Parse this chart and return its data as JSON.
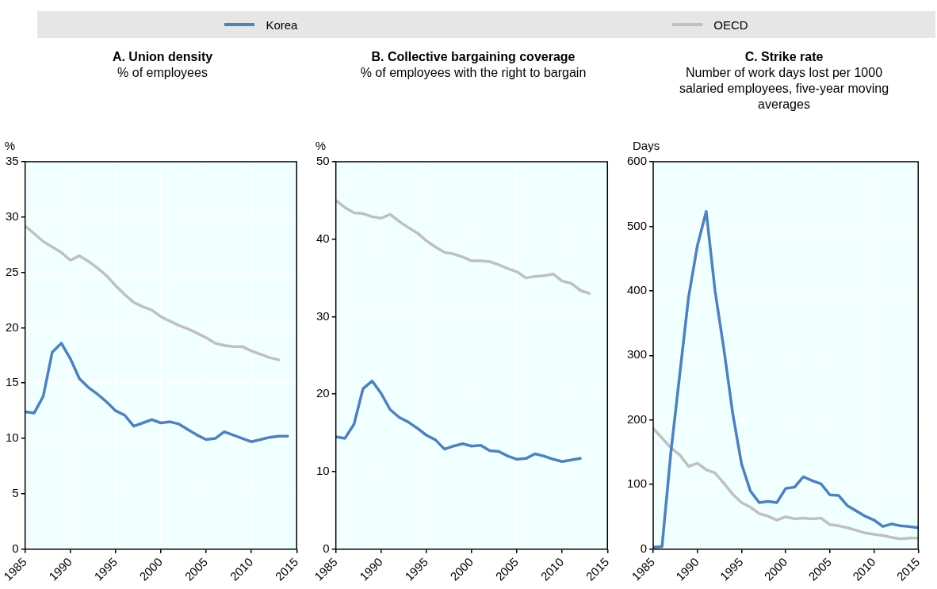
{
  "chart_data": [
    {
      "type": "line",
      "title": "A. Union density",
      "subtitle": "% of employees",
      "ylabel": "%",
      "x": [
        1985,
        1986,
        1987,
        1988,
        1989,
        1990,
        1991,
        1992,
        1993,
        1994,
        1995,
        1996,
        1997,
        1998,
        1999,
        2000,
        2001,
        2002,
        2003,
        2004,
        2005,
        2006,
        2007,
        2008,
        2009,
        2010,
        2011,
        2012,
        2013,
        2014
      ],
      "xlim": [
        1985,
        2015
      ],
      "xticks": [
        1985,
        1990,
        1995,
        2000,
        2005,
        2010,
        2015
      ],
      "ylim": [
        0,
        35
      ],
      "yticks": [
        0,
        5,
        10,
        15,
        20,
        25,
        30,
        35
      ],
      "grid": true,
      "legend": "top",
      "marker": "none",
      "series": [
        {
          "name": "Korea",
          "color": "#4f81bd",
          "values": [
            12.4,
            12.3,
            13.8,
            17.8,
            18.6,
            17.2,
            15.4,
            14.6,
            14.0,
            13.3,
            12.5,
            12.1,
            11.1,
            11.4,
            11.7,
            11.4,
            11.5,
            11.3,
            10.8,
            10.3,
            9.9,
            10.0,
            10.6,
            10.3,
            10.0,
            9.7,
            9.9,
            10.1,
            10.2,
            10.2
          ]
        },
        {
          "name": "OECD",
          "color": "#c0c0c0",
          "values": [
            29.2,
            28.5,
            27.8,
            27.3,
            26.8,
            26.1,
            26.5,
            26.0,
            25.4,
            24.7,
            23.8,
            23.0,
            22.3,
            21.9,
            21.6,
            21.0,
            20.6,
            20.2,
            19.9,
            19.5,
            19.1,
            18.6,
            18.4,
            18.3,
            18.3,
            17.9,
            17.6,
            17.3,
            17.1,
            null
          ]
        }
      ]
    },
    {
      "type": "line",
      "title": "B. Collective bargaining coverage",
      "subtitle": "% of employees with the right to bargain",
      "ylabel": "%",
      "x": [
        1985,
        1986,
        1987,
        1988,
        1989,
        1990,
        1991,
        1992,
        1993,
        1994,
        1995,
        1996,
        1997,
        1998,
        1999,
        2000,
        2001,
        2002,
        2003,
        2004,
        2005,
        2006,
        2007,
        2008,
        2009,
        2010,
        2011,
        2012,
        2013
      ],
      "xlim": [
        1985,
        2015
      ],
      "xticks": [
        1985,
        1990,
        1995,
        2000,
        2005,
        2010,
        2015
      ],
      "ylim": [
        0,
        50
      ],
      "yticks": [
        0,
        10,
        20,
        30,
        40,
        50
      ],
      "grid": true,
      "marker": "none",
      "series": [
        {
          "color": "#4f81bd",
          "values": [
            14.5,
            14.3,
            16.1,
            20.7,
            21.7,
            20.1,
            18.0,
            17.0,
            16.4,
            15.6,
            14.7,
            14.1,
            12.9,
            13.3,
            13.6,
            13.3,
            13.4,
            12.7,
            12.6,
            12.0,
            11.6,
            11.7,
            12.3,
            12.0,
            11.6,
            11.3,
            11.5,
            11.7,
            null
          ]
        },
        {
          "color": "#c0c0c0",
          "values": [
            45.0,
            44.1,
            43.4,
            43.3,
            42.9,
            42.7,
            43.2,
            42.3,
            41.5,
            40.8,
            39.8,
            39.0,
            38.3,
            38.1,
            37.7,
            37.2,
            37.2,
            37.1,
            36.7,
            36.2,
            35.8,
            35.0,
            35.2,
            35.3,
            35.5,
            34.6,
            34.3,
            33.4,
            33.0
          ]
        }
      ]
    },
    {
      "type": "line",
      "title": "C. Strike rate",
      "subtitle": "Number of work days lost per 1000 salaried employees, five-year moving averages",
      "ylabel": "Days",
      "x": [
        1985,
        1986,
        1987,
        1988,
        1989,
        1990,
        1991,
        1992,
        1993,
        1994,
        1995,
        1996,
        1997,
        1998,
        1999,
        2000,
        2001,
        2002,
        2003,
        2004,
        2005,
        2006,
        2007,
        2008,
        2009,
        2010,
        2011,
        2012,
        2013,
        2014,
        2015
      ],
      "xlim": [
        1985,
        2015
      ],
      "xticks": [
        1985,
        1990,
        1995,
        2000,
        2005,
        2010,
        2015
      ],
      "ylim": [
        0,
        600
      ],
      "yticks": [
        0,
        100,
        200,
        300,
        400,
        500,
        600
      ],
      "grid": true,
      "marker": "none",
      "series": [
        {
          "color": "#4f81bd",
          "values": [
            3,
            4,
            150,
            270,
            390,
            470,
            523,
            400,
            310,
            210,
            132,
            90,
            72,
            74,
            72,
            94,
            96,
            112,
            106,
            101,
            84,
            83,
            67,
            59,
            51,
            45,
            35,
            39,
            36,
            35,
            33
          ]
        },
        {
          "color": "#c0c0c0",
          "values": [
            187,
            172,
            157,
            146,
            128,
            133,
            123,
            118,
            102,
            85,
            72,
            65,
            55,
            51,
            45,
            50,
            47,
            48,
            47,
            48,
            38,
            36,
            33,
            29,
            25,
            23,
            21,
            18,
            16,
            17,
            17
          ]
        }
      ]
    }
  ]
}
